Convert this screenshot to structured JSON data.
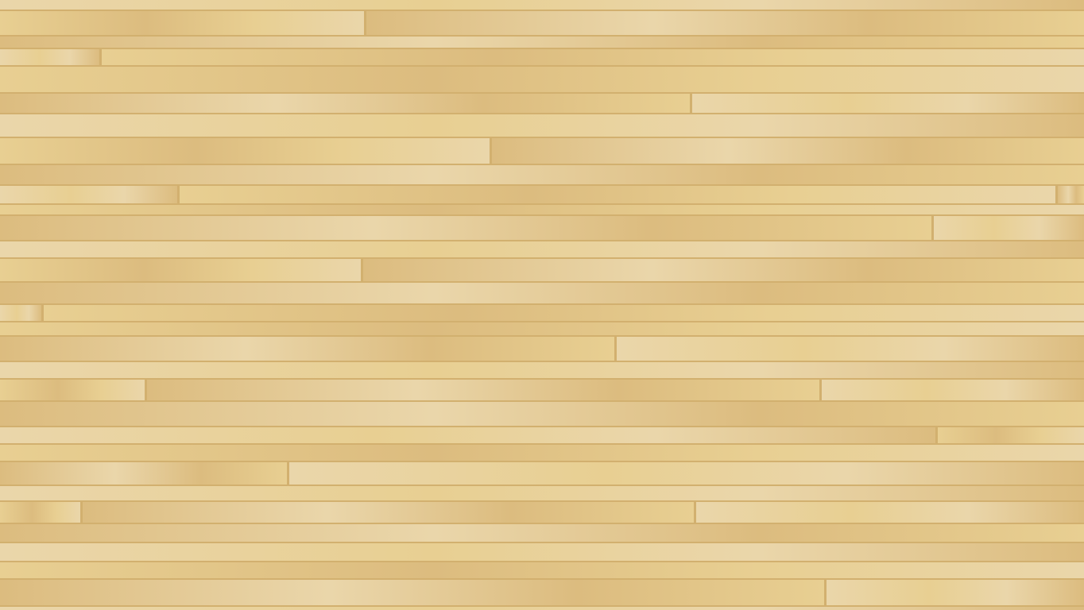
{
  "scene": {
    "texture": "wooden-floor-planks",
    "colors": {
      "gap": "#d2b06f",
      "light": "#ead6aa",
      "mid": "#e8cf92",
      "dark": "#dcbc7f"
    }
  }
}
